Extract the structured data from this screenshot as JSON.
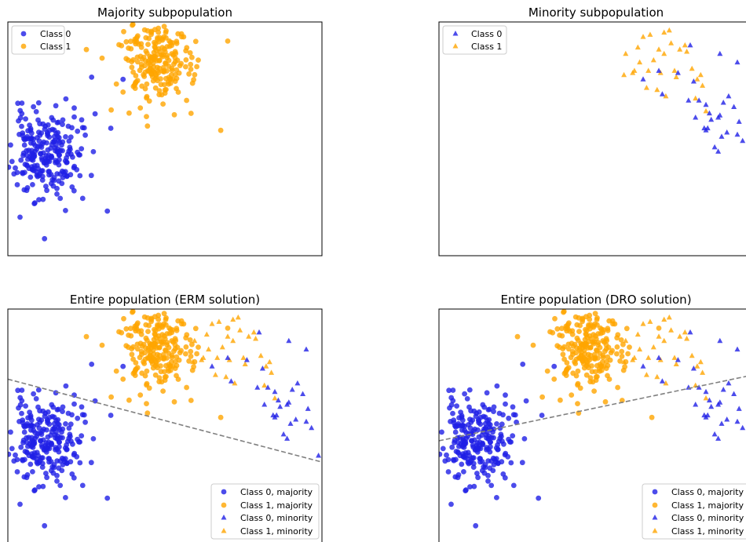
{
  "colors": {
    "class0": "#1f1fe6",
    "class1": "#ffa500",
    "boundary": "#808080"
  },
  "chart_data": [
    {
      "type": "scatter",
      "title": "Majority subpopulation",
      "grid": false,
      "legend_position": "upper-left",
      "legend": [
        "Class 0",
        "Class 1"
      ],
      "series": [
        {
          "name": "Class 0",
          "marker": "circle",
          "n": 240,
          "center": [
            2.1,
            7.1
          ],
          "spread": [
            1.0,
            1.05
          ],
          "seed": 11,
          "x": [
            6.6,
            2.1,
            5.7,
            3.0,
            4.8,
            5.9
          ],
          "y": [
            10.6,
            3.1,
            4.4,
            5.0,
            10.7,
            8.3
          ]
        },
        {
          "name": "Class 1",
          "marker": "circle",
          "n": 220,
          "center": [
            8.5,
            11.4
          ],
          "spread": [
            1.0,
            1.0
          ],
          "seed": 23,
          "x": [
            5.4,
            4.5,
            6.6,
            8.0,
            10.5,
            12.2,
            12.6,
            8.5
          ],
          "y": [
            11.6,
            12.0,
            10.0,
            8.4,
            9.0,
            8.2,
            12.4,
            13.4
          ]
        }
      ],
      "xlim": [
        0,
        18
      ],
      "ylim": [
        2.3,
        13.3
      ]
    },
    {
      "type": "scatter",
      "title": "Minority subpopulation",
      "grid": false,
      "legend_position": "upper-left",
      "legend": [
        "Class 0",
        "Class 1"
      ],
      "series": [
        {
          "name": "Class 0",
          "marker": "triangle",
          "x": [
            14.4,
            16.1,
            17.1,
            18.9,
            12.6,
            11.7,
            12.8,
            13.7,
            14.6,
            14.3,
            15.3,
            16.6,
            16.1,
            16.9,
            17.1,
            17.4,
            15.6,
            15.4,
            16.0,
            15.2,
            15.8,
            16.2,
            16.5,
            17.2,
            15.3,
            16.0,
            15.5,
            14.9,
            16.3,
            14.7,
            17.8
          ],
          "y": [
            12.2,
            11.8,
            11.4,
            11.0,
            11.0,
            10.6,
            9.9,
            10.9,
            10.5,
            9.6,
            9.4,
            9.8,
            8.9,
            9.3,
            8.0,
            7.7,
            8.7,
            8.3,
            8.8,
            8.3,
            7.4,
            7.9,
            8.1,
            8.6,
            8.2,
            7.2,
            9.0,
            9.6,
            9.5,
            8.8,
            6.4
          ],
          "highlight": {
            "x": [
              10.9
            ],
            "y": [
              11.1
            ]
          }
        },
        {
          "name": "Class 1",
          "marker": "triangle",
          "x": [
            11.5,
            12.0,
            12.9,
            10.7,
            13.8,
            11.4,
            12.6,
            11.7,
            13.3,
            12.1,
            14.1,
            13.5,
            12.7,
            12.3,
            11.9,
            13.0,
            14.7,
            15.3,
            15.1,
            13.6,
            14.8,
            15.0,
            14.5,
            12.9,
            14.2,
            11.1,
            12.5,
            13.2,
            10.6,
            11.2
          ],
          "y": [
            11.4,
            11.0,
            11.8,
            11.8,
            12.0,
            12.1,
            12.0,
            12.6,
            12.3,
            12.7,
            12.2,
            11.0,
            10.9,
            11.5,
            10.2,
            9.8,
            9.7,
            9.1,
            10.3,
            10.7,
            10.6,
            10.8,
            11.1,
            12.8,
            11.9,
            10.9,
            10.1,
            12.9,
            10.8,
            11.0
          ],
          "highlight": {
            "x": [
              10.9
            ],
            "y": [
              11.1
            ]
          }
        }
      ],
      "xlim": [
        0,
        18
      ],
      "ylim": [
        2.3,
        13.3
      ]
    },
    {
      "type": "scatter",
      "title": "Entire population (ERM solution)",
      "grid": false,
      "legend_position": "lower-right",
      "legend": [
        "Class 0, majority",
        "Class 1, majority",
        "Class 0, minority",
        "Class 1, minority"
      ],
      "decision_boundary": {
        "x": [
          0,
          18
        ],
        "y": [
          10.0,
          6.1
        ],
        "style": "dashed"
      },
      "series_ref": "union of majority and minority series"
    },
    {
      "type": "scatter",
      "title": "Entire population (DRO solution)",
      "grid": false,
      "legend_position": "lower-right",
      "legend": [
        "Class 0, majority",
        "Class 1, majority",
        "Class 0, minority",
        "Class 1, minority"
      ],
      "decision_boundary": {
        "x": [
          0,
          18
        ],
        "y": [
          7.1,
          10.2
        ],
        "style": "dashed"
      },
      "series_ref": "union of majority and minority series"
    }
  ]
}
